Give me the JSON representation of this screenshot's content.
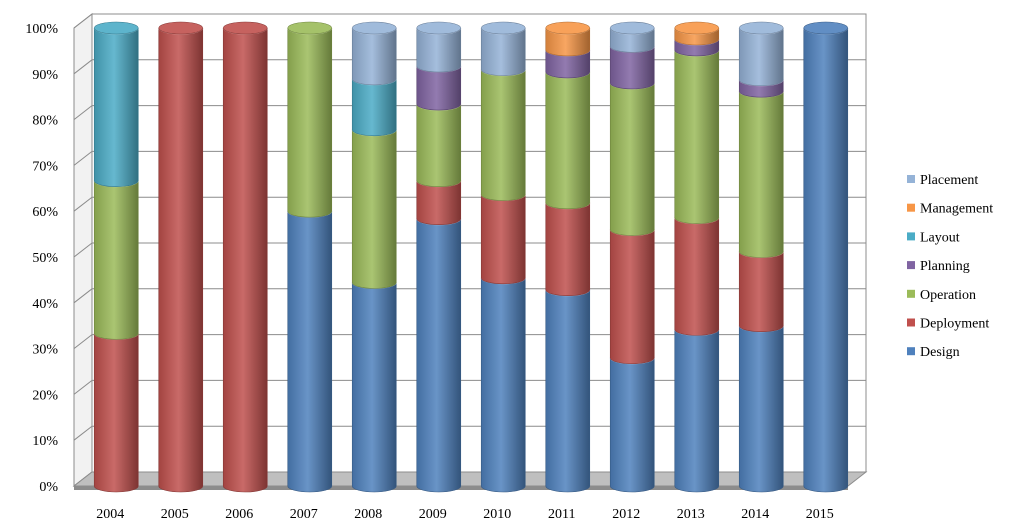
{
  "chart_data": {
    "type": "bar",
    "stacked": true,
    "percent_stacked": true,
    "style": "3d-cylinder",
    "title": "",
    "xlabel": "",
    "ylabel": "",
    "ylim": [
      0,
      100
    ],
    "y_ticks": [
      "0%",
      "10%",
      "20%",
      "30%",
      "40%",
      "50%",
      "60%",
      "70%",
      "80%",
      "90%",
      "100%"
    ],
    "grid": true,
    "legend_position": "right",
    "categories": [
      "2004",
      "2005",
      "2006",
      "2007",
      "2008",
      "2009",
      "2010",
      "2011",
      "2012",
      "2013",
      "2014",
      "2015"
    ],
    "series": [
      {
        "name": "Design",
        "color": "#4f81bd",
        "values": [
          0,
          0,
          0,
          60,
          44.4,
          58.3,
          45.5,
          42.9,
          28,
          34.2,
          35,
          100
        ]
      },
      {
        "name": "Deployment",
        "color": "#c0504d",
        "values": [
          33.3,
          100,
          100,
          0,
          0,
          8.3,
          18.2,
          19,
          28,
          24.4,
          16.2,
          0
        ]
      },
      {
        "name": "Operation",
        "color": "#9bbb59",
        "values": [
          33.3,
          0,
          0,
          40,
          33.3,
          16.7,
          27.3,
          28.6,
          32,
          36.6,
          35,
          0
        ]
      },
      {
        "name": "Planning",
        "color": "#8064a2",
        "values": [
          0,
          0,
          0,
          0,
          0,
          8.3,
          0,
          4.8,
          8,
          2.4,
          2.5,
          0
        ]
      },
      {
        "name": "Layout",
        "color": "#4bacc6",
        "values": [
          33.3,
          0,
          0,
          0,
          11.1,
          0,
          0,
          0,
          0,
          0,
          0,
          0
        ]
      },
      {
        "name": "Management",
        "color": "#f79646",
        "values": [
          0,
          0,
          0,
          0,
          0,
          0,
          0,
          4.8,
          0,
          2.4,
          0,
          0
        ]
      },
      {
        "name": "Placement",
        "color": "#95b3d7",
        "values": [
          0,
          0,
          0,
          0,
          11.1,
          8.3,
          9.1,
          0,
          4,
          0,
          11.3,
          0
        ]
      }
    ],
    "legend_order": [
      "Placement",
      "Management",
      "Layout",
      "Planning",
      "Operation",
      "Deployment",
      "Design"
    ]
  }
}
